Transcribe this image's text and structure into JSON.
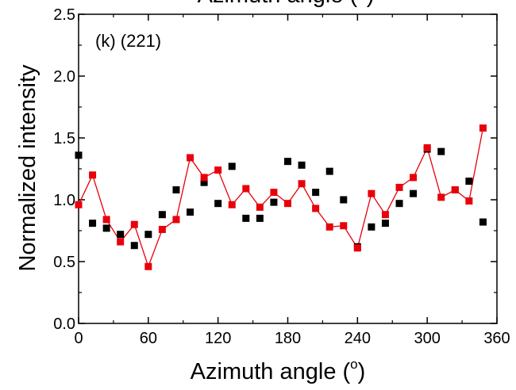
{
  "chart_data": {
    "type": "scatter",
    "top_title": "Azimuth angle (°)",
    "xlabel": "Azimuth angle (",
    "xlabel_sup": "o",
    "xlabel_end": ")",
    "ylabel": "Normalized intensity",
    "annotation": "(k) (221)",
    "xlim": [
      0,
      360
    ],
    "ylim": [
      0.0,
      2.5
    ],
    "x_ticks": [
      0,
      60,
      120,
      180,
      240,
      300,
      360
    ],
    "x_tick_labels": [
      "0",
      "60",
      "120",
      "180",
      "240",
      "300",
      "360"
    ],
    "y_ticks": [
      0.0,
      0.5,
      1.0,
      1.5,
      2.0,
      2.5
    ],
    "y_tick_labels": [
      "0.0",
      "0.5",
      "1.0",
      "1.5",
      "2.0",
      "2.5"
    ],
    "grid": false,
    "series": [
      {
        "color": "#000000",
        "marker": "square",
        "line": false,
        "x": [
          0,
          12,
          24,
          36,
          48,
          60,
          72,
          84,
          96,
          108,
          120,
          132,
          144,
          156,
          168,
          180,
          192,
          204,
          216,
          228,
          240,
          252,
          264,
          276,
          288,
          300,
          312,
          324,
          336,
          348
        ],
        "y": [
          1.36,
          0.81,
          0.77,
          0.72,
          0.63,
          0.72,
          0.88,
          1.08,
          0.9,
          1.14,
          0.97,
          1.27,
          0.85,
          0.85,
          0.98,
          1.31,
          1.28,
          1.06,
          1.23,
          1.0,
          0.62,
          0.78,
          0.81,
          0.97,
          1.05,
          1.41,
          1.39,
          1.08,
          1.15,
          0.82
        ]
      },
      {
        "color": "#e8000b",
        "marker": "square",
        "line": true,
        "x": [
          0,
          12,
          24,
          36,
          48,
          60,
          72,
          84,
          96,
          108,
          120,
          132,
          144,
          156,
          168,
          180,
          192,
          204,
          216,
          228,
          240,
          252,
          264,
          276,
          288,
          300,
          312,
          324,
          336,
          348
        ],
        "y": [
          0.96,
          1.2,
          0.84,
          0.66,
          0.8,
          0.46,
          0.76,
          0.84,
          1.34,
          1.18,
          1.24,
          0.96,
          1.09,
          0.94,
          1.06,
          0.97,
          1.13,
          0.93,
          0.78,
          0.79,
          0.61,
          1.05,
          0.88,
          1.1,
          1.18,
          1.42,
          1.02,
          1.08,
          0.99,
          1.58
        ]
      }
    ]
  }
}
